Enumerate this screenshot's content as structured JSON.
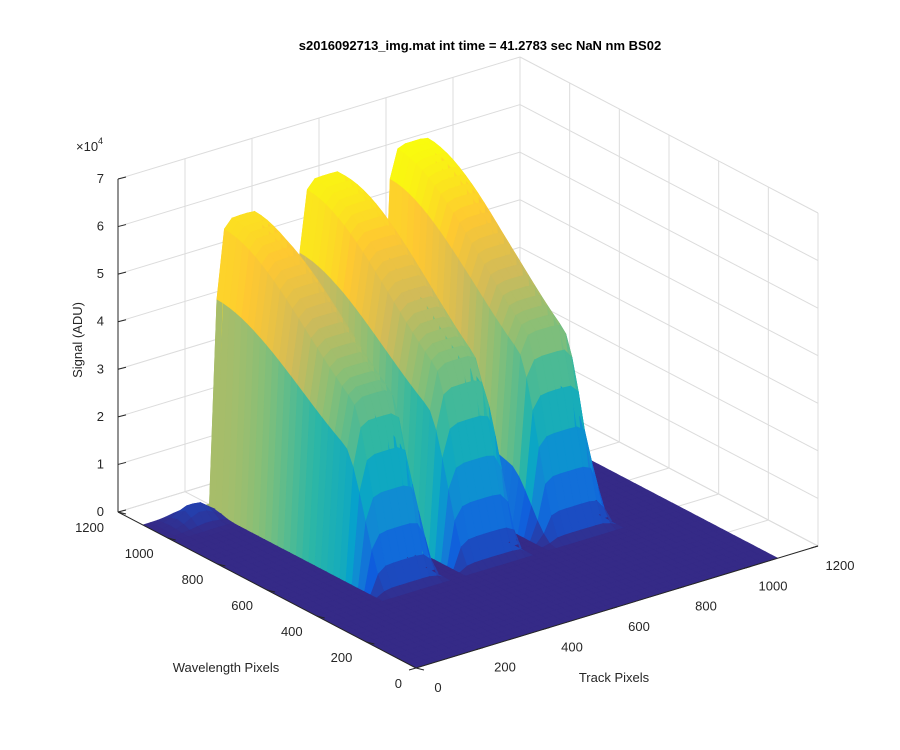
{
  "chart_data": {
    "type": "surface",
    "title": "s2016092713_img.mat int time = 41.2783 sec  NaN nm BS02",
    "xlabel": "Track Pixels",
    "ylabel": "Wavelength Pixels",
    "zlabel": "Signal (ADU)",
    "z_exponent_label": "×10",
    "z_exponent_power": "4",
    "xlim": [
      0,
      1200
    ],
    "ylim": [
      0,
      1200
    ],
    "zlim": [
      0,
      70000
    ],
    "x_ticks": [
      "0",
      "200",
      "400",
      "600",
      "800",
      "1000",
      "1200"
    ],
    "y_ticks": [
      "0",
      "200",
      "400",
      "600",
      "800",
      "1000",
      "1200"
    ],
    "z_ticks": [
      "0",
      "1",
      "2",
      "3",
      "4",
      "5",
      "6",
      "7"
    ],
    "grid": "on",
    "colormap": "parula",
    "colormap_colors": [
      "#352a87",
      "#0f5cdd",
      "#1481d6",
      "#06a4ca",
      "#2eb7a4",
      "#87bf77",
      "#d1bb59",
      "#fec832",
      "#f9fb0e"
    ],
    "surface": {
      "grid_size_x": 48,
      "grid_size_y": 44,
      "x_range": [
        0,
        1080
      ],
      "y_range": [
        0,
        1100
      ],
      "peaks": [
        {
          "track_center": 280,
          "track_halfwidth": 90,
          "wavelength_start": 380,
          "wavelength_end": 1080,
          "max_signal": 60000
        },
        {
          "track_center": 530,
          "track_halfwidth": 95,
          "wavelength_start": 380,
          "wavelength_end": 1080,
          "max_signal": 63000
        },
        {
          "track_center": 790,
          "track_halfwidth": 95,
          "wavelength_start": 380,
          "wavelength_end": 1080,
          "max_signal": 64500
        }
      ],
      "small_bumps": [
        {
          "track_center": 120,
          "wavelength_center": 1050,
          "max_signal": 3500
        },
        {
          "track_center": 280,
          "wavelength_center": 1060,
          "max_signal": 6500
        }
      ]
    }
  }
}
